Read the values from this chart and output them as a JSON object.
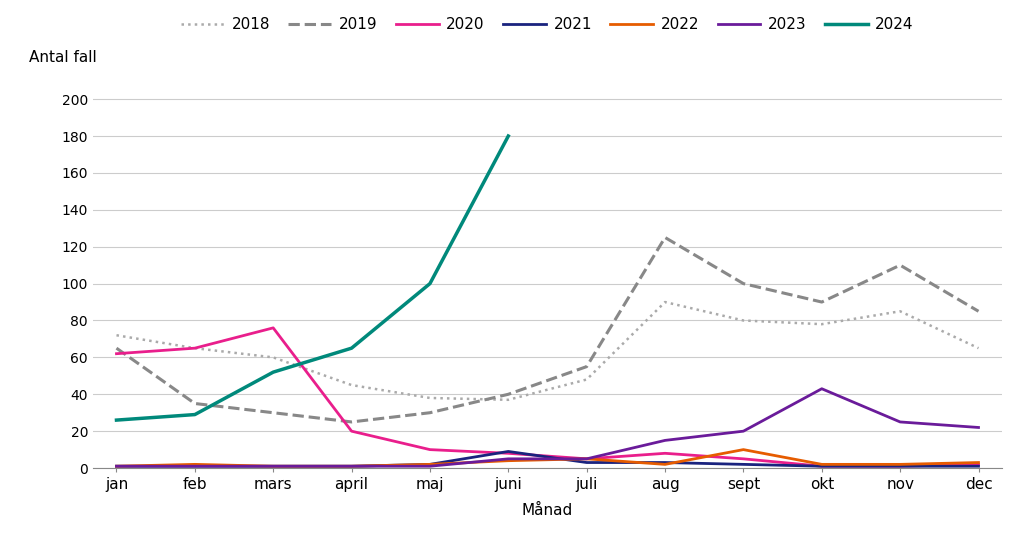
{
  "months": [
    "jan",
    "feb",
    "mars",
    "april",
    "maj",
    "juni",
    "juli",
    "aug",
    "sept",
    "okt",
    "nov",
    "dec"
  ],
  "series": {
    "2018": [
      72,
      65,
      60,
      45,
      38,
      37,
      48,
      90,
      80,
      78,
      85,
      65
    ],
    "2019": [
      65,
      35,
      30,
      25,
      30,
      40,
      55,
      125,
      100,
      90,
      110,
      85
    ],
    "2020": [
      62,
      65,
      76,
      20,
      10,
      8,
      5,
      8,
      5,
      1,
      1,
      2
    ],
    "2021": [
      1,
      1,
      1,
      1,
      2,
      9,
      3,
      3,
      2,
      1,
      1,
      1
    ],
    "2022": [
      1,
      2,
      1,
      1,
      2,
      4,
      5,
      2,
      10,
      2,
      2,
      3
    ],
    "2023": [
      1,
      1,
      1,
      1,
      1,
      5,
      5,
      15,
      20,
      43,
      25,
      22
    ],
    "2024": [
      26,
      29,
      52,
      65,
      100,
      180,
      null,
      null,
      null,
      null,
      null,
      null
    ]
  },
  "colors": {
    "2018": "#aaaaaa",
    "2019": "#888888",
    "2020": "#e91e8c",
    "2021": "#1a237e",
    "2022": "#e65c00",
    "2023": "#6a1b9a",
    "2024": "#00897b"
  },
  "linestyles": {
    "2018": "dotted",
    "2019": "dashed",
    "2020": "solid",
    "2021": "solid",
    "2022": "solid",
    "2023": "solid",
    "2024": "solid"
  },
  "linewidths": {
    "2018": 1.8,
    "2019": 2.2,
    "2020": 2.0,
    "2021": 2.0,
    "2022": 2.0,
    "2023": 2.0,
    "2024": 2.5
  },
  "ylabel_text": "Antal fall",
  "xlabel": "Månad",
  "ylim": [
    0,
    210
  ],
  "yticks": [
    0,
    20,
    40,
    60,
    80,
    100,
    120,
    140,
    160,
    180,
    200
  ],
  "background_color": "#ffffff",
  "plot_background": "#ffffff"
}
